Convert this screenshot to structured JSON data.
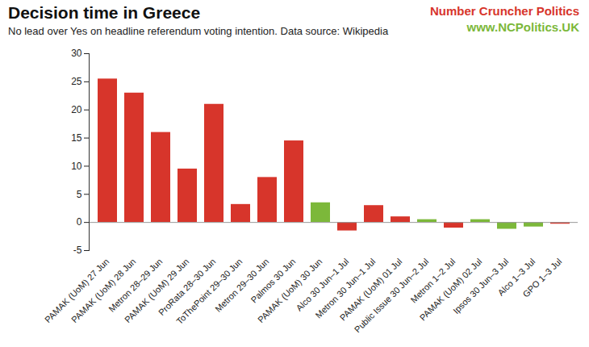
{
  "chart_data": {
    "type": "bar",
    "title": "Decision time in Greece",
    "subtitle": "No lead over Yes on headline referendum voting intention. Data source: Wikipedia",
    "annotations": [
      {
        "text": "Number Cruncher Politics",
        "color": "#d7352b"
      },
      {
        "text": "www.NCPolitics.UK",
        "color": "#7cb83a"
      }
    ],
    "categories": [
      "PAMAK (UoM) 27 Jun",
      "PAMAK (UoM) 28 Jun",
      "Metron 28–29 Jun",
      "PAMAK (UoM) 29 Jun",
      "ProRata 28–30 Jun",
      "ToThePoint 29–30 Jun",
      "Metron 29–30 Jun",
      "Palmos 30 Jun",
      "PAMAK (UoM) 30 Jun",
      "Alco 30 Jun–1 Jul",
      "Metron 30 Jun–1 Jul",
      "PAMAK (UoM) 01 Jul",
      "Public Issue 30 Jun–2 Jul",
      "Metron 1–2 Jul",
      "PAMAK (UoM) 02 Jul",
      "Ipsos 30 Jun–3 Jul",
      "Alco 1–3 Jul",
      "GPO 1–3 Jul"
    ],
    "values": [
      25.5,
      23,
      16,
      9.5,
      21,
      3.2,
      8,
      14.5,
      3.5,
      -1.5,
      3,
      1,
      0.5,
      -1,
      0.5,
      -1.2,
      -0.8,
      -0.3
    ],
    "colors": [
      "#d7352b",
      "#d7352b",
      "#d7352b",
      "#d7352b",
      "#d7352b",
      "#d7352b",
      "#d7352b",
      "#d7352b",
      "#7cb83a",
      "#d7352b",
      "#d7352b",
      "#d7352b",
      "#7cb83a",
      "#d7352b",
      "#7cb83a",
      "#7cb83a",
      "#7cb83a",
      "#d7352b"
    ],
    "ylim": [
      -5,
      30
    ],
    "yticks": [
      -5,
      0,
      5,
      10,
      15,
      20,
      25,
      30
    ],
    "grid": false
  }
}
